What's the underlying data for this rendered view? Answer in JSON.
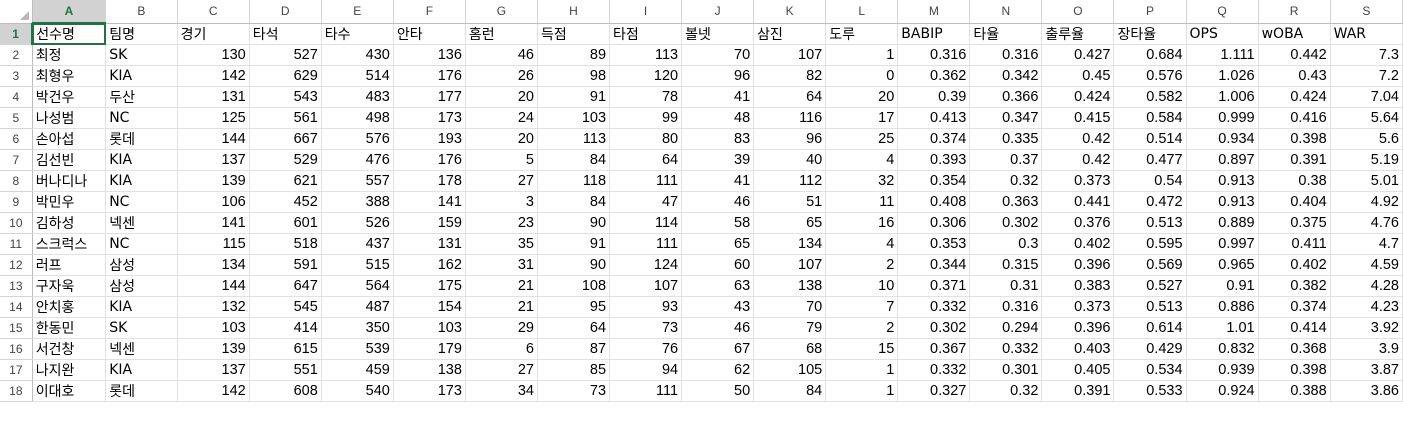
{
  "columns": [
    "A",
    "B",
    "C",
    "D",
    "E",
    "F",
    "G",
    "H",
    "I",
    "J",
    "K",
    "L",
    "M",
    "N",
    "O",
    "P",
    "Q",
    "R",
    "S"
  ],
  "active_column": "A",
  "active_row": "1",
  "rows": [
    {
      "n": "1",
      "c": [
        "선수명",
        "팀명",
        "경기",
        "타석",
        "타수",
        "안타",
        "홈런",
        "득점",
        "타점",
        "볼넷",
        "삼진",
        "도루",
        "BABIP",
        "타율",
        "출루율",
        "장타율",
        "OPS",
        "wOBA",
        "WAR"
      ]
    },
    {
      "n": "2",
      "c": [
        "최정",
        "SK",
        "130",
        "527",
        "430",
        "136",
        "46",
        "89",
        "113",
        "70",
        "107",
        "1",
        "0.316",
        "0.316",
        "0.427",
        "0.684",
        "1.111",
        "0.442",
        "7.3"
      ]
    },
    {
      "n": "3",
      "c": [
        "최형우",
        "KIA",
        "142",
        "629",
        "514",
        "176",
        "26",
        "98",
        "120",
        "96",
        "82",
        "0",
        "0.362",
        "0.342",
        "0.45",
        "0.576",
        "1.026",
        "0.43",
        "7.2"
      ]
    },
    {
      "n": "4",
      "c": [
        "박건우",
        "두산",
        "131",
        "543",
        "483",
        "177",
        "20",
        "91",
        "78",
        "41",
        "64",
        "20",
        "0.39",
        "0.366",
        "0.424",
        "0.582",
        "1.006",
        "0.424",
        "7.04"
      ]
    },
    {
      "n": "5",
      "c": [
        "나성범",
        "NC",
        "125",
        "561",
        "498",
        "173",
        "24",
        "103",
        "99",
        "48",
        "116",
        "17",
        "0.413",
        "0.347",
        "0.415",
        "0.584",
        "0.999",
        "0.416",
        "5.64"
      ]
    },
    {
      "n": "6",
      "c": [
        "손아섭",
        "롯데",
        "144",
        "667",
        "576",
        "193",
        "20",
        "113",
        "80",
        "83",
        "96",
        "25",
        "0.374",
        "0.335",
        "0.42",
        "0.514",
        "0.934",
        "0.398",
        "5.6"
      ]
    },
    {
      "n": "7",
      "c": [
        "김선빈",
        "KIA",
        "137",
        "529",
        "476",
        "176",
        "5",
        "84",
        "64",
        "39",
        "40",
        "4",
        "0.393",
        "0.37",
        "0.42",
        "0.477",
        "0.897",
        "0.391",
        "5.19"
      ]
    },
    {
      "n": "8",
      "c": [
        "버나디나",
        "KIA",
        "139",
        "621",
        "557",
        "178",
        "27",
        "118",
        "111",
        "41",
        "112",
        "32",
        "0.354",
        "0.32",
        "0.373",
        "0.54",
        "0.913",
        "0.38",
        "5.01"
      ]
    },
    {
      "n": "9",
      "c": [
        "박민우",
        "NC",
        "106",
        "452",
        "388",
        "141",
        "3",
        "84",
        "47",
        "46",
        "51",
        "11",
        "0.408",
        "0.363",
        "0.441",
        "0.472",
        "0.913",
        "0.404",
        "4.92"
      ]
    },
    {
      "n": "10",
      "c": [
        "김하성",
        "넥센",
        "141",
        "601",
        "526",
        "159",
        "23",
        "90",
        "114",
        "58",
        "65",
        "16",
        "0.306",
        "0.302",
        "0.376",
        "0.513",
        "0.889",
        "0.375",
        "4.76"
      ]
    },
    {
      "n": "11",
      "c": [
        "스크럭스",
        "NC",
        "115",
        "518",
        "437",
        "131",
        "35",
        "91",
        "111",
        "65",
        "134",
        "4",
        "0.353",
        "0.3",
        "0.402",
        "0.595",
        "0.997",
        "0.411",
        "4.7"
      ]
    },
    {
      "n": "12",
      "c": [
        "러프",
        "삼성",
        "134",
        "591",
        "515",
        "162",
        "31",
        "90",
        "124",
        "60",
        "107",
        "2",
        "0.344",
        "0.315",
        "0.396",
        "0.569",
        "0.965",
        "0.402",
        "4.59"
      ]
    },
    {
      "n": "13",
      "c": [
        "구자욱",
        "삼성",
        "144",
        "647",
        "564",
        "175",
        "21",
        "108",
        "107",
        "63",
        "138",
        "10",
        "0.371",
        "0.31",
        "0.383",
        "0.527",
        "0.91",
        "0.382",
        "4.28"
      ]
    },
    {
      "n": "14",
      "c": [
        "안치홍",
        "KIA",
        "132",
        "545",
        "487",
        "154",
        "21",
        "95",
        "93",
        "43",
        "70",
        "7",
        "0.332",
        "0.316",
        "0.373",
        "0.513",
        "0.886",
        "0.374",
        "4.23"
      ]
    },
    {
      "n": "15",
      "c": [
        "한동민",
        "SK",
        "103",
        "414",
        "350",
        "103",
        "29",
        "64",
        "73",
        "46",
        "79",
        "2",
        "0.302",
        "0.294",
        "0.396",
        "0.614",
        "1.01",
        "0.414",
        "3.92"
      ]
    },
    {
      "n": "16",
      "c": [
        "서건창",
        "넥센",
        "139",
        "615",
        "539",
        "179",
        "6",
        "87",
        "76",
        "67",
        "68",
        "15",
        "0.367",
        "0.332",
        "0.403",
        "0.429",
        "0.832",
        "0.368",
        "3.9"
      ]
    },
    {
      "n": "17",
      "c": [
        "나지완",
        "KIA",
        "137",
        "551",
        "459",
        "138",
        "27",
        "85",
        "94",
        "62",
        "105",
        "1",
        "0.332",
        "0.301",
        "0.405",
        "0.534",
        "0.939",
        "0.398",
        "3.87"
      ]
    },
    {
      "n": "18",
      "c": [
        "이대호",
        "롯데",
        "142",
        "608",
        "540",
        "173",
        "34",
        "73",
        "111",
        "50",
        "84",
        "1",
        "0.327",
        "0.32",
        "0.391",
        "0.533",
        "0.924",
        "0.388",
        "3.86"
      ]
    }
  ]
}
